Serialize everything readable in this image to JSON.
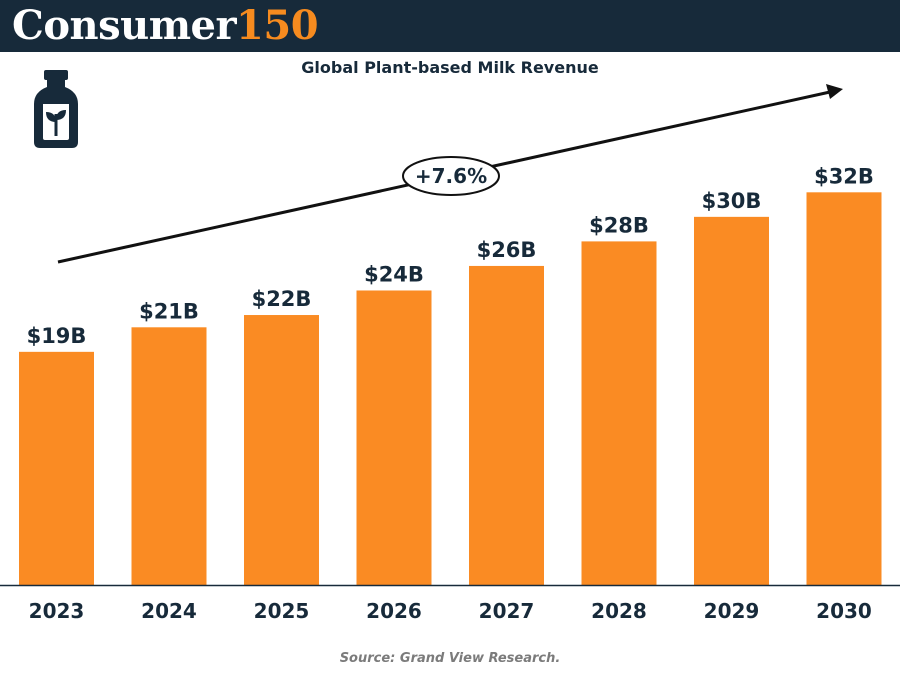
{
  "brand": {
    "name_part1": "Consumer",
    "name_part2": "150"
  },
  "icon": "plant-milk-bottle-icon",
  "colors": {
    "header_bg": "#172a3a",
    "accent": "#f68b1f",
    "bar": "#fa8b23",
    "text": "#172a3a"
  },
  "chart_data": {
    "type": "bar",
    "title": "Global Plant-based Milk Revenue",
    "categories": [
      "2023",
      "2024",
      "2025",
      "2026",
      "2027",
      "2028",
      "2029",
      "2030"
    ],
    "values": [
      19,
      21,
      22,
      24,
      26,
      28,
      30,
      32
    ],
    "value_labels": [
      "$19B",
      "$21B",
      "$22B",
      "$24B",
      "$26B",
      "$28B",
      "$30B",
      "$32B"
    ],
    "unit": "USD billions",
    "xlabel": "",
    "ylabel": "",
    "ylim": [
      0,
      38.3
    ],
    "grid": false,
    "annotation": {
      "text": "+7.6%",
      "kind": "trend-arrow"
    }
  },
  "source": "Source: Grand View Research."
}
